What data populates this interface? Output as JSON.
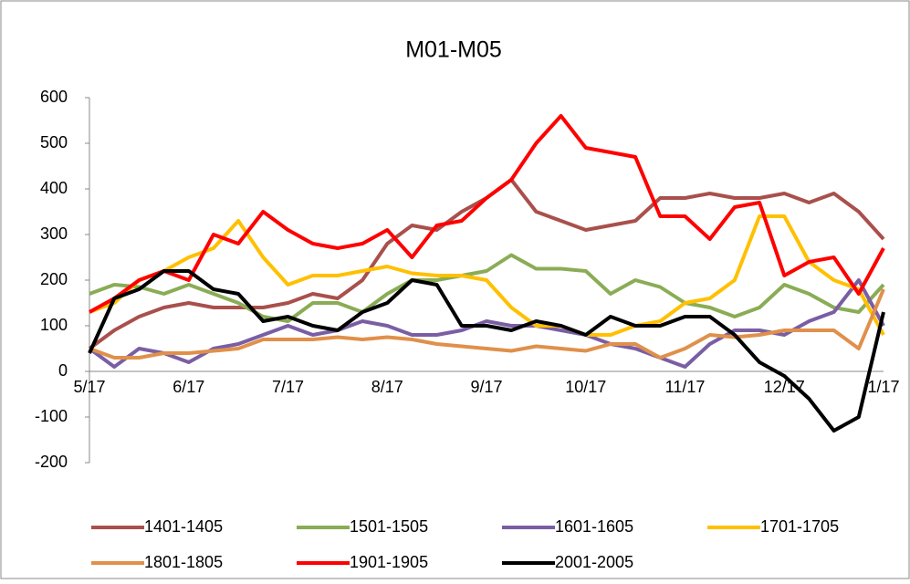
{
  "chart_data": {
    "type": "line",
    "title": "M01-M05",
    "categories": [
      "5/17",
      null,
      null,
      null,
      "6/17",
      null,
      null,
      null,
      "7/17",
      null,
      null,
      null,
      "8/17",
      null,
      null,
      null,
      "9/17",
      null,
      null,
      null,
      "10/17",
      null,
      null,
      null,
      "11/17",
      null,
      null,
      null,
      "12/17",
      null,
      null,
      null,
      "1/17"
    ],
    "series": [
      {
        "name": "1401-1405",
        "color": "#a9504c",
        "values": [
          50,
          90,
          120,
          140,
          150,
          140,
          140,
          140,
          150,
          170,
          160,
          200,
          280,
          320,
          310,
          350,
          380,
          420,
          350,
          330,
          310,
          320,
          330,
          380,
          380,
          390,
          380,
          380,
          390,
          370,
          390,
          350,
          290
        ]
      },
      {
        "name": "1501-1505",
        "color": "#8aac55",
        "values": [
          170,
          190,
          185,
          170,
          190,
          170,
          150,
          120,
          110,
          150,
          150,
          130,
          170,
          200,
          200,
          210,
          220,
          255,
          225,
          225,
          220,
          170,
          200,
          185,
          150,
          140,
          120,
          140,
          190,
          170,
          140,
          130,
          190
        ]
      },
      {
        "name": "1601-1605",
        "color": "#7a5ea4",
        "values": [
          50,
          10,
          50,
          40,
          20,
          50,
          60,
          80,
          100,
          80,
          90,
          110,
          100,
          80,
          80,
          90,
          110,
          100,
          100,
          90,
          80,
          60,
          50,
          30,
          10,
          60,
          90,
          90,
          80,
          110,
          130,
          200,
          100
        ]
      },
      {
        "name": "1701-1705",
        "color": "#ffc000",
        "values": [
          130,
          150,
          200,
          220,
          250,
          270,
          330,
          250,
          190,
          210,
          210,
          220,
          230,
          215,
          210,
          210,
          200,
          140,
          100,
          100,
          80,
          80,
          100,
          110,
          150,
          160,
          200,
          340,
          340,
          240,
          200,
          180,
          80
        ]
      },
      {
        "name": "1801-1805",
        "color": "#e0904a",
        "values": [
          50,
          30,
          30,
          40,
          40,
          45,
          50,
          70,
          70,
          70,
          75,
          70,
          75,
          70,
          60,
          55,
          50,
          45,
          55,
          50,
          45,
          60,
          60,
          30,
          50,
          80,
          75,
          80,
          90,
          90,
          90,
          50,
          180
        ]
      },
      {
        "name": "1901-1905",
        "color": "#ff0000",
        "values": [
          130,
          160,
          200,
          220,
          200,
          300,
          280,
          350,
          310,
          280,
          270,
          280,
          310,
          250,
          320,
          330,
          380,
          420,
          500,
          560,
          490,
          480,
          470,
          340,
          340,
          290,
          360,
          370,
          210,
          240,
          250,
          170,
          270
        ]
      },
      {
        "name": "2001-2005",
        "color": "#000000",
        "values": [
          40,
          160,
          180,
          220,
          220,
          180,
          170,
          110,
          120,
          100,
          90,
          130,
          150,
          200,
          190,
          100,
          100,
          90,
          110,
          100,
          80,
          120,
          100,
          100,
          120,
          120,
          80,
          20,
          -10,
          -60,
          -130,
          -100,
          130
        ]
      }
    ],
    "ylim": [
      -200,
      600
    ],
    "yticks": [
      -200,
      -100,
      0,
      100,
      200,
      300,
      400,
      500,
      600
    ]
  }
}
